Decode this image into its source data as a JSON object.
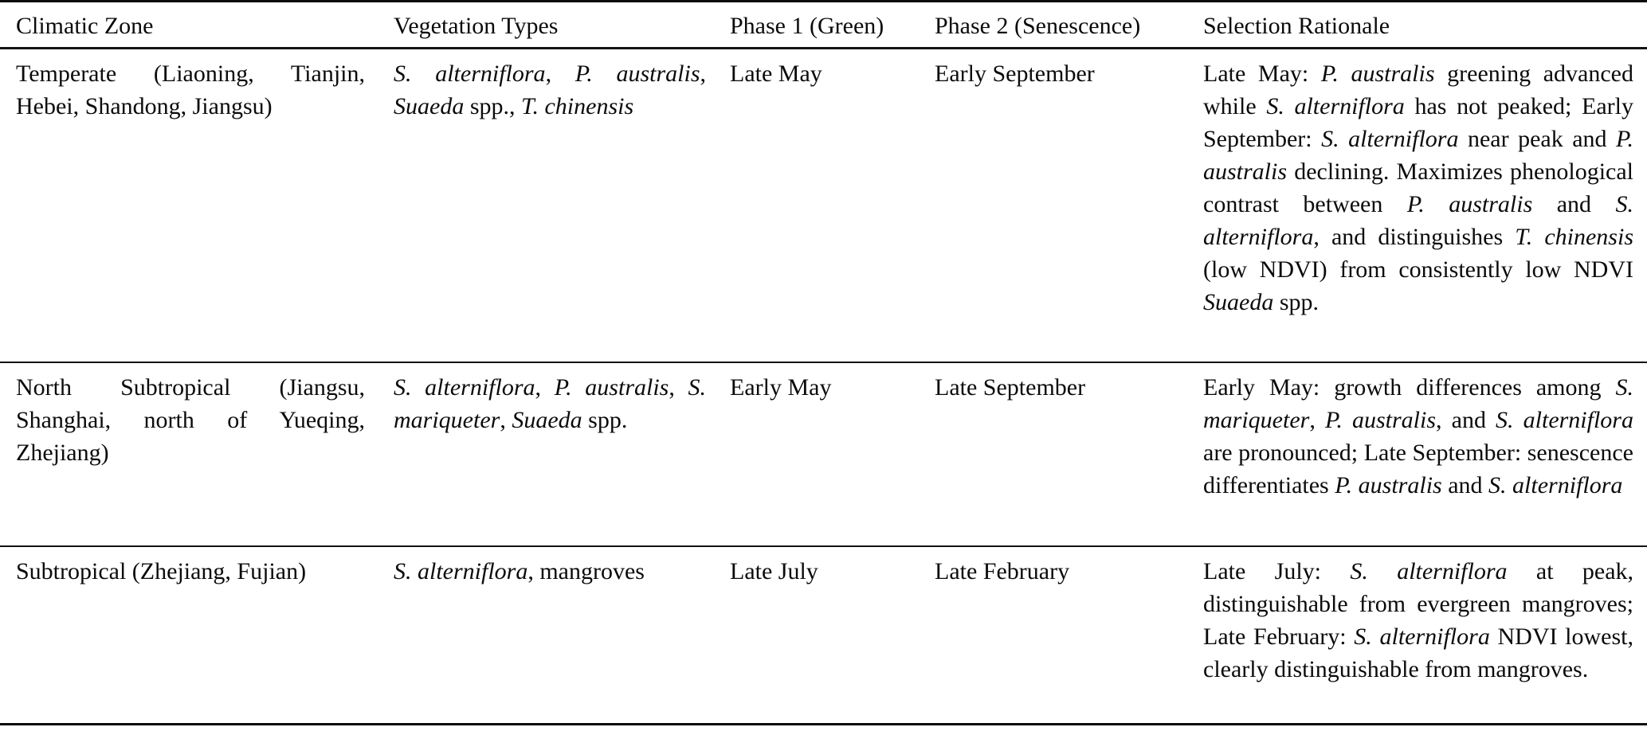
{
  "table": {
    "columns": [
      {
        "label": "Climatic Zone"
      },
      {
        "label": "Vegetation Types"
      },
      {
        "label": "Phase 1 (Green)"
      },
      {
        "label": "Phase 2 (Senescence)"
      },
      {
        "label": "Selection Rationale"
      }
    ],
    "rows": [
      {
        "climatic_zone": "Temperate (Liaoning, Tianjin, Hebei, Shandong, Jiangsu)",
        "vegetation_types": "*S. alterniflora*, *P. australis*, *Suaeda* spp., *T. chinensis*",
        "phase1": "Late May",
        "phase2": "Early September",
        "rationale": "Late May: *P. australis* greening advanced while *S. alterniflora* has not peaked; Early September: *S. alterniflora* near peak and *P. australis* declining. Maximizes phenological contrast between *P. australis* and *S. alterniflora*, and distinguishes *T. chinensis* (low NDVI) from consistently low NDVI *Suaeda* spp."
      },
      {
        "climatic_zone": "North Subtropical (Jiangsu, Shanghai, north of Yueqing, Zhejiang)",
        "vegetation_types": "*S. alterniflora*, *P. australis*, *S. mariqueter*, *Suaeda* spp.",
        "phase1": "Early May",
        "phase2": "Late September",
        "rationale": "Early May: growth differences among *S. mariqueter*, *P. australis*, and *S. alterniflora* are pronounced; Late September: senescence differentiates *P. australis* and *S. alterniflora*"
      },
      {
        "climatic_zone": "Subtropical (Zhejiang, Fujian)",
        "vegetation_types": "*S. alterniflora*, mangroves",
        "phase1": "Late July",
        "phase2": "Late February",
        "rationale": "Late July: *S. alterniflora* at peak, distinguishable from evergreen mangroves; Late February: *S. alterniflora* NDVI lowest, clearly distinguishable from mangroves."
      }
    ]
  }
}
